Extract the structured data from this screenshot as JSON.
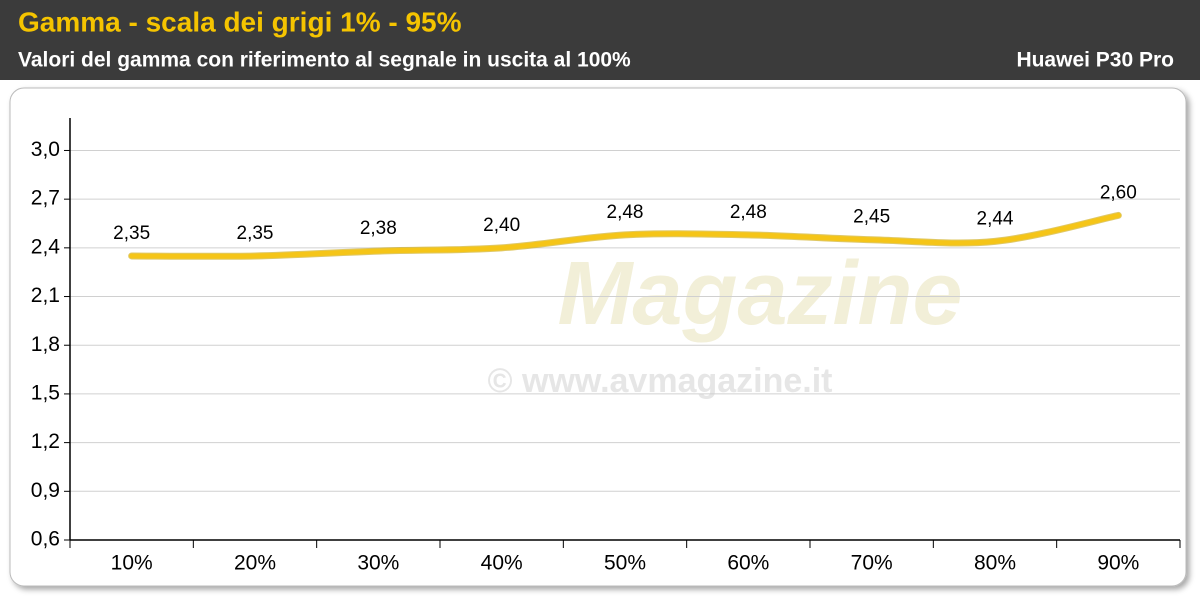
{
  "chart_data": {
    "type": "line",
    "title": "Gamma - scala dei grigi 1% - 95%",
    "subtitle": "Valori del gamma con riferimento al segnale in uscita al 100%",
    "device": "Huawei P30 Pro",
    "watermark": [
      "Magazine",
      "© www.avmagazine.it"
    ],
    "categories": [
      "10%",
      "20%",
      "30%",
      "40%",
      "50%",
      "60%",
      "70%",
      "80%",
      "90%"
    ],
    "values": [
      2.35,
      2.35,
      2.38,
      2.4,
      2.48,
      2.48,
      2.45,
      2.44,
      2.6
    ],
    "value_labels": [
      "2,35",
      "2,35",
      "2,38",
      "2,40",
      "2,48",
      "2,48",
      "2,45",
      "2,44",
      "2,60"
    ],
    "color": "#f5c518",
    "ylim": [
      0.6,
      3.2
    ],
    "yticks": [
      {
        "value": 0.6,
        "label": "0,6"
      },
      {
        "value": 0.9,
        "label": "0,9"
      },
      {
        "value": 1.2,
        "label": "1,2"
      },
      {
        "value": 1.5,
        "label": "1,5"
      },
      {
        "value": 1.8,
        "label": "1,8"
      },
      {
        "value": 2.1,
        "label": "2,1"
      },
      {
        "value": 2.4,
        "label": "2,4"
      },
      {
        "value": 2.7,
        "label": "2,7"
      },
      {
        "value": 3.0,
        "label": "3,0"
      }
    ],
    "grid": true
  }
}
